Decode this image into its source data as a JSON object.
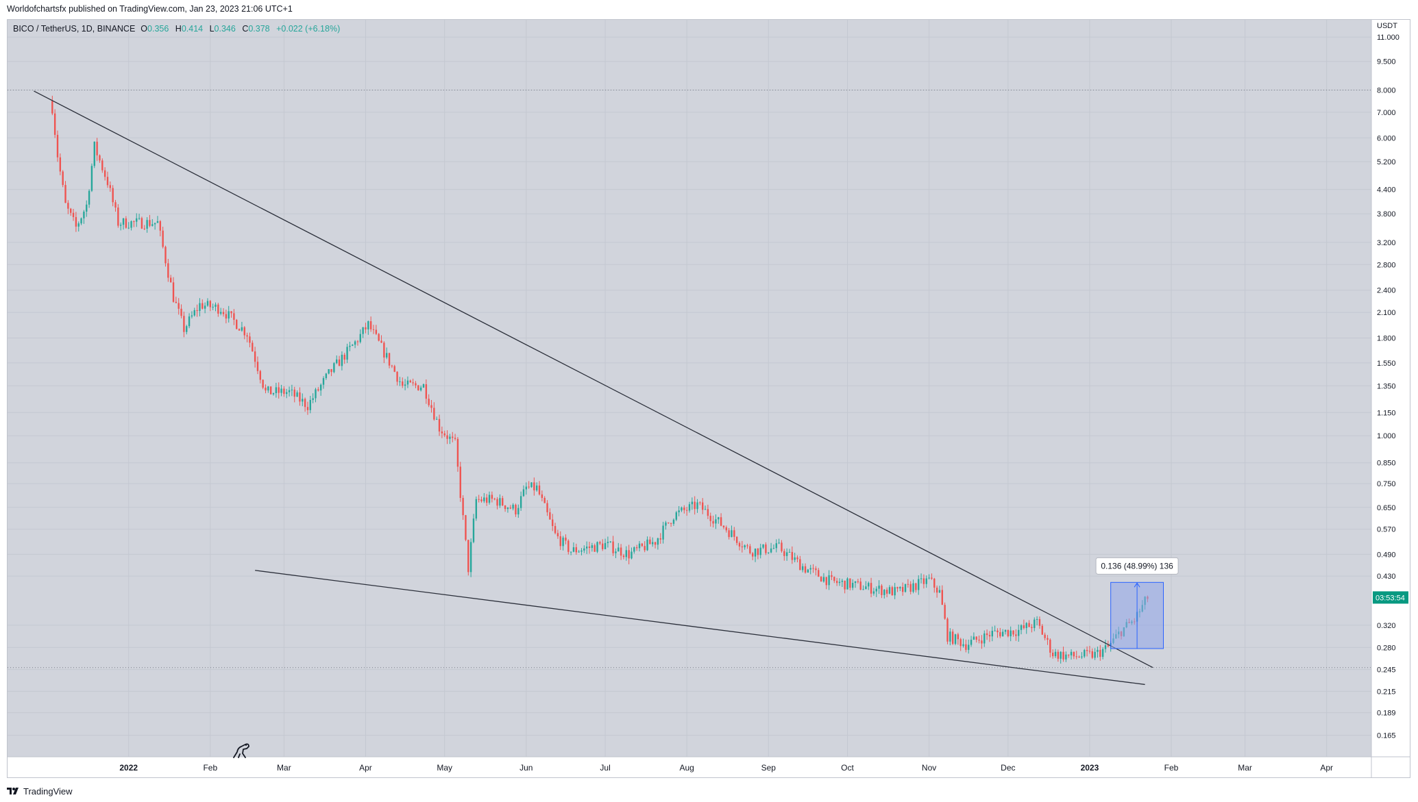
{
  "header": {
    "publish_line": "Worldofchartsfx published on TradingView.com, Jan 23, 2023 21:06 UTC+1"
  },
  "symbol_line": {
    "symbol": "BICO / TetherUS, 1D, BINANCE",
    "o_label": "O",
    "o_value": "0.356",
    "h_label": "H",
    "h_value": "0.414",
    "l_label": "L",
    "l_value": "0.346",
    "c_label": "C",
    "c_value": "0.378",
    "change": "+0.022 (+6.18%)"
  },
  "footer": {
    "brand": "TradingView"
  },
  "colors": {
    "background": "#d1d4dc",
    "up": "#26a69a",
    "down": "#ef5350",
    "trendline": "#2a2e39",
    "measure_fill": "#8fa4ea",
    "measure_border": "#2962ff",
    "price_label_bg": "#089981"
  },
  "chart_data": {
    "type": "candlestick",
    "currency": "USDT",
    "scale": "log",
    "ylim": [
      0.145,
      12.2
    ],
    "x_date_range": [
      "2021-11-16",
      "2023-04-18"
    ],
    "first_candle": "2021-12-03",
    "last_candle": "2023-01-23",
    "grid": true,
    "x_ticks": [
      {
        "label": "2022",
        "date": "2022-01-01"
      },
      {
        "label": "Feb",
        "date": "2022-02-01"
      },
      {
        "label": "Mar",
        "date": "2022-03-01"
      },
      {
        "label": "Apr",
        "date": "2022-04-01"
      },
      {
        "label": "May",
        "date": "2022-05-01"
      },
      {
        "label": "Jun",
        "date": "2022-06-01"
      },
      {
        "label": "Jul",
        "date": "2022-07-01"
      },
      {
        "label": "Aug",
        "date": "2022-08-01"
      },
      {
        "label": "Sep",
        "date": "2022-09-01"
      },
      {
        "label": "Oct",
        "date": "2022-10-01"
      },
      {
        "label": "Nov",
        "date": "2022-11-01"
      },
      {
        "label": "Dec",
        "date": "2022-12-01"
      },
      {
        "label": "2023",
        "date": "2023-01-01"
      },
      {
        "label": "Feb",
        "date": "2023-02-01"
      },
      {
        "label": "Mar",
        "date": "2023-03-01"
      },
      {
        "label": "Apr",
        "date": "2023-04-01"
      }
    ],
    "y_ticks": [
      "11.000",
      "9.500",
      "8.000",
      "7.000",
      "6.000",
      "5.200",
      "4.400",
      "3.800",
      "3.200",
      "2.800",
      "2.400",
      "2.100",
      "1.800",
      "1.550",
      "1.350",
      "1.150",
      "1.000",
      "0.850",
      "0.750",
      "0.650",
      "0.570",
      "0.490",
      "0.430",
      "0.320",
      "0.280",
      "0.245",
      "0.215",
      "0.189",
      "0.165"
    ],
    "price_path": [
      [
        "2021-12-03",
        7.2
      ],
      [
        "2021-12-05",
        5.4
      ],
      [
        "2021-12-08",
        4.0
      ],
      [
        "2021-12-12",
        3.5
      ],
      [
        "2021-12-16",
        4.0
      ],
      [
        "2021-12-19",
        5.7
      ],
      [
        "2021-12-24",
        4.6
      ],
      [
        "2021-12-28",
        3.6
      ],
      [
        "2022-01-04",
        3.6
      ],
      [
        "2022-01-12",
        3.6
      ],
      [
        "2022-01-18",
        2.3
      ],
      [
        "2022-01-22",
        1.9
      ],
      [
        "2022-01-28",
        2.2
      ],
      [
        "2022-02-05",
        2.15
      ],
      [
        "2022-02-15",
        1.85
      ],
      [
        "2022-02-22",
        1.3
      ],
      [
        "2022-03-03",
        1.3
      ],
      [
        "2022-03-10",
        1.2
      ],
      [
        "2022-03-18",
        1.45
      ],
      [
        "2022-03-28",
        1.75
      ],
      [
        "2022-04-02",
        1.95
      ],
      [
        "2022-04-08",
        1.65
      ],
      [
        "2022-04-15",
        1.35
      ],
      [
        "2022-04-23",
        1.35
      ],
      [
        "2022-04-29",
        1.05
      ],
      [
        "2022-05-05",
        0.95
      ],
      [
        "2022-05-10",
        0.45
      ],
      [
        "2022-05-13",
        0.68
      ],
      [
        "2022-05-20",
        0.68
      ],
      [
        "2022-05-28",
        0.64
      ],
      [
        "2022-06-01",
        0.73
      ],
      [
        "2022-06-05",
        0.73
      ],
      [
        "2022-06-12",
        0.55
      ],
      [
        "2022-06-18",
        0.5
      ],
      [
        "2022-07-01",
        0.52
      ],
      [
        "2022-07-10",
        0.49
      ],
      [
        "2022-07-20",
        0.53
      ],
      [
        "2022-07-27",
        0.62
      ],
      [
        "2022-08-05",
        0.66
      ],
      [
        "2022-08-15",
        0.58
      ],
      [
        "2022-08-25",
        0.5
      ],
      [
        "2022-09-05",
        0.51
      ],
      [
        "2022-09-15",
        0.45
      ],
      [
        "2022-09-25",
        0.415
      ],
      [
        "2022-10-01",
        0.41
      ],
      [
        "2022-10-10",
        0.4
      ],
      [
        "2022-10-20",
        0.39
      ],
      [
        "2022-11-01",
        0.42
      ],
      [
        "2022-11-05",
        0.39
      ],
      [
        "2022-11-08",
        0.3
      ],
      [
        "2022-11-15",
        0.285
      ],
      [
        "2022-11-25",
        0.305
      ],
      [
        "2022-12-05",
        0.31
      ],
      [
        "2022-12-12",
        0.325
      ],
      [
        "2022-12-18",
        0.27
      ],
      [
        "2022-12-25",
        0.265
      ],
      [
        "2023-01-03",
        0.268
      ],
      [
        "2023-01-08",
        0.28
      ],
      [
        "2023-01-13",
        0.31
      ],
      [
        "2023-01-18",
        0.33
      ],
      [
        "2023-01-23",
        0.378
      ]
    ],
    "trendlines": [
      {
        "from": [
          "2021-11-26",
          7.95
        ],
        "to": [
          "2023-01-25",
          0.248
        ]
      },
      {
        "from": [
          "2022-02-18",
          0.445
        ],
        "to": [
          "2023-01-22",
          0.224
        ]
      }
    ],
    "horizontal_lines": [
      8.0,
      0.248
    ],
    "measure_box": {
      "from": [
        "2023-01-09",
        0.278
      ],
      "to": [
        "2023-01-29",
        0.414
      ],
      "label": "0.136 (48.99%) 136"
    },
    "last_price_label": "03:53:54"
  }
}
